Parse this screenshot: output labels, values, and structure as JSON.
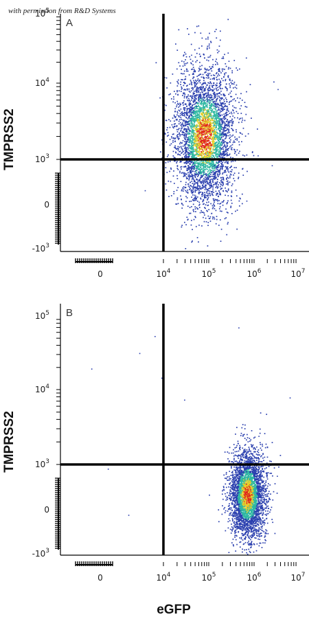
{
  "credit": "with permission from R&D Systems",
  "chart_data": [
    {
      "type": "scatter",
      "panel": "A",
      "plot_style": "flow cytometry density scatter (blue-green-yellow-red)",
      "xlabel": "eGFP",
      "ylabel": "TMPRSS2",
      "x_ticks": [
        {
          "base": "0",
          "exp": ""
        },
        {
          "base": "10",
          "exp": "4"
        },
        {
          "base": "10",
          "exp": "5"
        },
        {
          "base": "10",
          "exp": "6"
        },
        {
          "base": "10",
          "exp": "7"
        }
      ],
      "y_ticks": [
        {
          "base": "10",
          "exp": "5"
        },
        {
          "base": "10",
          "exp": "4"
        },
        {
          "base": "10",
          "exp": "3"
        },
        {
          "base": "0",
          "exp": ""
        },
        {
          "base": "-10",
          "exp": "3"
        }
      ],
      "quadrant_gate": {
        "x": 10000,
        "y": 1000
      },
      "population": {
        "x_center": 80000,
        "y_center": 2000,
        "x_spread_decades": 0.6,
        "y_spread_decades": 0.7,
        "events": 4200
      },
      "grid": false
    },
    {
      "type": "scatter",
      "panel": "B",
      "plot_style": "flow cytometry density scatter (blue-green-yellow-red)",
      "xlabel": "eGFP",
      "ylabel": "TMPRSS2",
      "x_ticks": [
        {
          "base": "0",
          "exp": ""
        },
        {
          "base": "10",
          "exp": "4"
        },
        {
          "base": "10",
          "exp": "5"
        },
        {
          "base": "10",
          "exp": "6"
        },
        {
          "base": "10",
          "exp": "7"
        }
      ],
      "y_ticks": [
        {
          "base": "10",
          "exp": "5"
        },
        {
          "base": "10",
          "exp": "4"
        },
        {
          "base": "10",
          "exp": "3"
        },
        {
          "base": "0",
          "exp": ""
        },
        {
          "base": "-10",
          "exp": "3"
        }
      ],
      "quadrant_gate": {
        "x": 10000,
        "y": 1000
      },
      "population": {
        "x_center": 700000,
        "y_center": 400,
        "x_spread_decades": 0.35,
        "y_spread_decades": 0.45,
        "events": 3600
      },
      "grid": false
    }
  ],
  "colors": {
    "axis": "#000000",
    "gate": "#000000",
    "density_low": "#2a3fae",
    "density_mid": "#2fb8a2",
    "density_midhigh": "#e6d02a",
    "density_high": "#e0261c"
  }
}
